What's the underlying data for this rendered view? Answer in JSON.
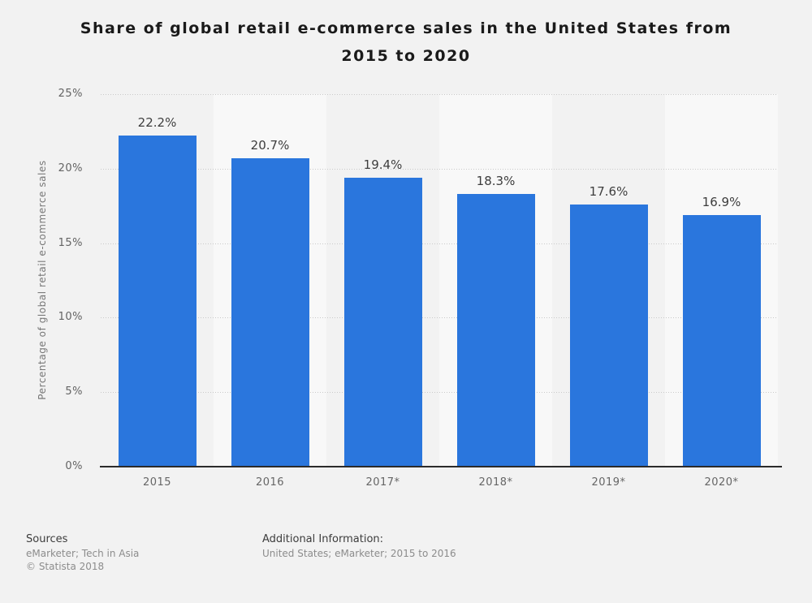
{
  "page": {
    "background_color": "#f2f2f2"
  },
  "chart_data": {
    "type": "bar",
    "title": "Share of global retail e-commerce sales in the United States from 2015 to 2020",
    "categories": [
      "2015",
      "2016",
      "2017*",
      "2018*",
      "2019*",
      "2020*"
    ],
    "values": [
      22.2,
      20.7,
      19.4,
      18.3,
      17.6,
      16.9
    ],
    "value_labels": [
      "22.2%",
      "20.7%",
      "19.4%",
      "18.3%",
      "17.6%",
      "16.9%"
    ],
    "xlabel": "",
    "ylabel": "Percentage of global retail e-commerce sales",
    "ylim": [
      0,
      25
    ],
    "yticks": [
      0,
      5,
      10,
      15,
      20,
      25
    ],
    "ytick_labels": [
      "0%",
      "5%",
      "10%",
      "15%",
      "20%",
      "25%"
    ],
    "grid": "horizontal dotted gridlines at 5% steps",
    "legend": "none",
    "bar_color": "#2a76dd",
    "column_band_colors": [
      "#f2f2f2",
      "#f8f8f8"
    ]
  },
  "footer": {
    "sources_heading": "Sources",
    "sources_line": "eMarketer; Tech in Asia",
    "copyright": "© Statista 2018",
    "additional_heading": "Additional Information:",
    "additional_line": "United States; eMarketer; 2015 to 2016"
  }
}
